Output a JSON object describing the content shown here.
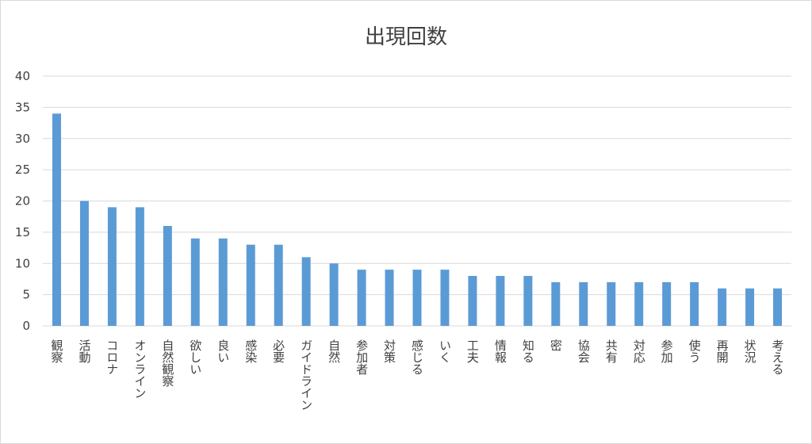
{
  "chart_data": {
    "type": "bar",
    "title": "出現回数",
    "xlabel": "",
    "ylabel": "",
    "ylim": [
      0,
      40
    ],
    "yticks": [
      0,
      5,
      10,
      15,
      20,
      25,
      30,
      35,
      40
    ],
    "grid": true,
    "legend": "none",
    "bar_color": "#5b9bd5",
    "categories": [
      "観察",
      "活動",
      "コロナ",
      "オンライン",
      "自然観察",
      "欲しい",
      "良い",
      "感染",
      "必要",
      "ガイドライン",
      "自然",
      "参加者",
      "対策",
      "感じる",
      "いく",
      "工夫",
      "情報",
      "知る",
      "密",
      "協会",
      "共有",
      "対応",
      "参加",
      "使う",
      "再開",
      "状況",
      "考える"
    ],
    "values": [
      34,
      20,
      19,
      19,
      16,
      14,
      14,
      13,
      13,
      11,
      10,
      9,
      9,
      9,
      9,
      8,
      8,
      8,
      7,
      7,
      7,
      7,
      7,
      7,
      6,
      6,
      6
    ]
  }
}
